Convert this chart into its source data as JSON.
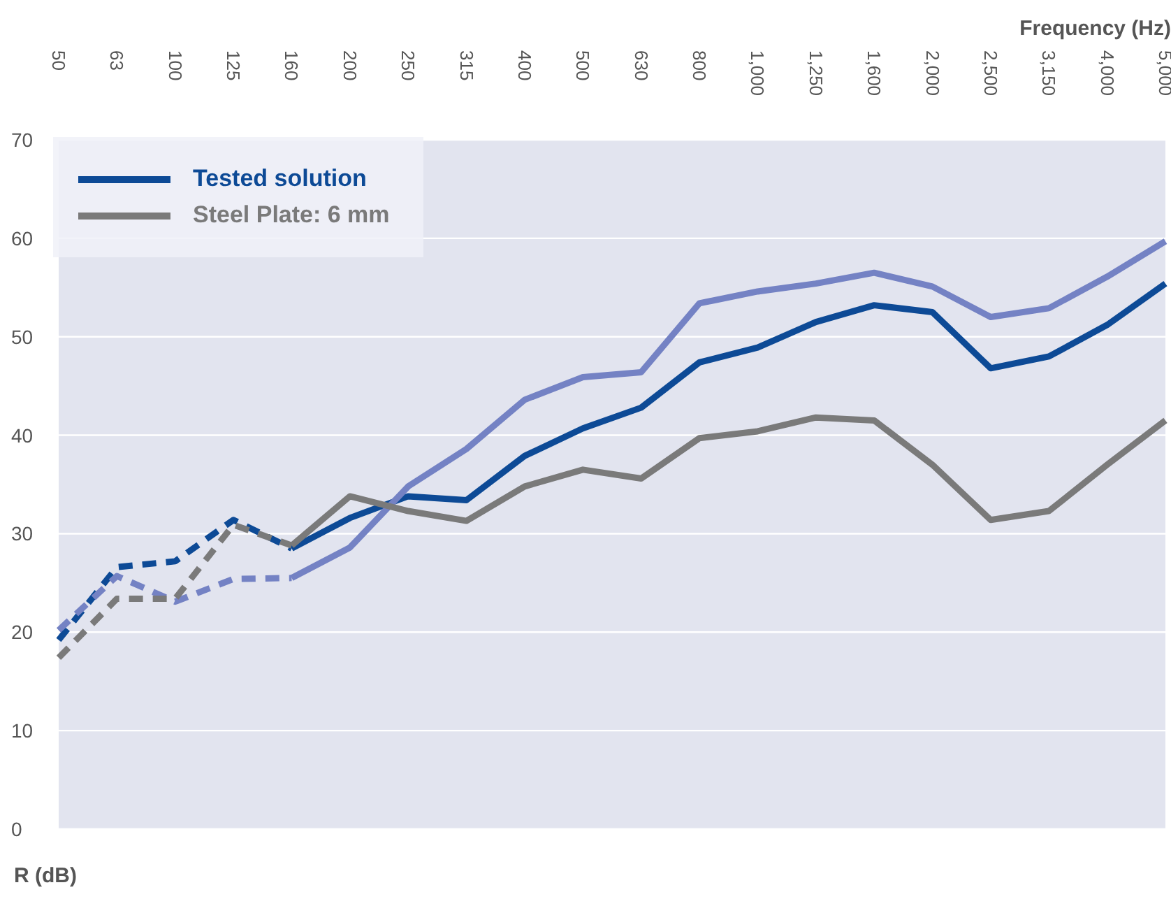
{
  "chart_data": {
    "type": "line",
    "xlabel": "Frequency (Hz)",
    "ylabel": "R (dB)",
    "categories": [
      "50",
      "63",
      "100",
      "125",
      "160",
      "200",
      "250",
      "315",
      "400",
      "500",
      "630",
      "800",
      "1,000",
      "1,250",
      "1,600",
      "2,000",
      "2,500",
      "3,150",
      "4,000",
      "5,000"
    ],
    "series": [
      {
        "color": "#0d4a96",
        "line_style": "dashed",
        "values": [
          19.2,
          26.6,
          27.2,
          31.4,
          28.5,
          null,
          null,
          null,
          null,
          null,
          null,
          null,
          null,
          null,
          null,
          null,
          null,
          null,
          null,
          null
        ]
      },
      {
        "name": "Tested solution",
        "color": "#0d4a96",
        "line_style": "solid",
        "values": [
          null,
          null,
          null,
          null,
          28.5,
          31.6,
          33.8,
          33.4,
          37.9,
          40.7,
          42.8,
          47.4,
          48.9,
          51.5,
          53.2,
          52.5,
          46.8,
          48.0,
          51.2,
          55.4
        ]
      },
      {
        "color": "#7482c4",
        "line_style": "dashed",
        "values": [
          20.2,
          25.7,
          23.1,
          25.4,
          25.5,
          null,
          null,
          null,
          null,
          null,
          null,
          null,
          null,
          null,
          null,
          null,
          null,
          null,
          null,
          null
        ]
      },
      {
        "color": "#7482c4",
        "line_style": "solid",
        "values": [
          null,
          null,
          null,
          null,
          25.5,
          28.6,
          34.8,
          38.6,
          43.6,
          45.9,
          46.4,
          53.4,
          54.6,
          55.4,
          56.5,
          55.1,
          52.0,
          52.9,
          56.1,
          59.7
        ]
      },
      {
        "color": "#7a7a7a",
        "line_style": "dashed",
        "values": [
          17.4,
          23.4,
          23.4,
          30.9,
          28.8,
          null,
          null,
          null,
          null,
          null,
          null,
          null,
          null,
          null,
          null,
          null,
          null,
          null,
          null,
          null
        ]
      },
      {
        "name": "Steel Plate: 6 mm",
        "color": "#7a7a7a",
        "line_style": "solid",
        "values": [
          null,
          null,
          null,
          null,
          28.8,
          33.8,
          32.3,
          31.3,
          34.8,
          36.5,
          35.6,
          39.7,
          40.4,
          41.8,
          41.5,
          37.0,
          31.4,
          32.3,
          37.0,
          41.5
        ]
      }
    ],
    "ylim": [
      0,
      70
    ],
    "yticks": [
      0,
      10,
      20,
      30,
      40,
      50,
      60,
      70
    ],
    "grid": "y",
    "legend": "top left",
    "marker": "none"
  }
}
